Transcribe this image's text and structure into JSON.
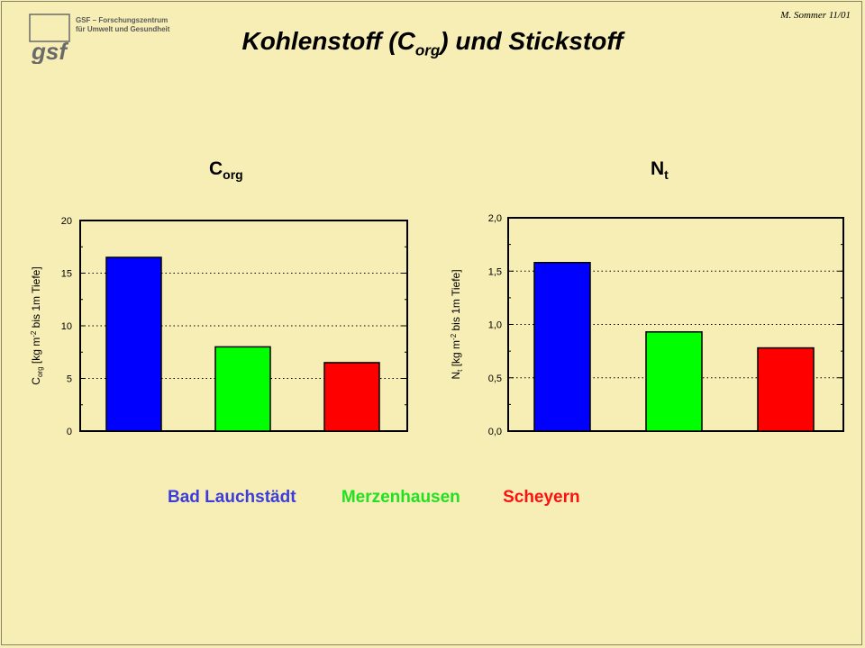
{
  "header": {
    "logo_lines": [
      "GSF – Forschungszentrum",
      "für Umwelt und Gesundheit"
    ],
    "logo_text": "gsf",
    "author": "M. Sommer 11/01",
    "title_main": "Kohlenstoff (C",
    "title_sub": "org",
    "title_rest": ") und Stickstoff"
  },
  "colors": {
    "background": "#f7eeb5",
    "bad_lauchstaedt": "#0000ff",
    "merzenhausen": "#00ff00",
    "scheyern": "#ff0000"
  },
  "legend": [
    {
      "label": "Bad Lauchstädt",
      "color": "#3c3cdc"
    },
    {
      "label": "Merzenhausen",
      "color": "#22e022"
    },
    {
      "label": "Scheyern",
      "color": "#ff1010"
    }
  ],
  "chart_data": [
    {
      "type": "bar",
      "title": "C",
      "title_sub": "org",
      "ylabel_parts": [
        "C",
        "org",
        " [kg m",
        "-2",
        " bis 1m Tiefe]"
      ],
      "categories": [
        "Bad Lauchstädt",
        "Merzenhausen",
        "Scheyern"
      ],
      "values": [
        16.5,
        8.0,
        6.5
      ],
      "colors": [
        "#0000ff",
        "#00ff00",
        "#ff0000"
      ],
      "ylim": [
        0,
        20
      ],
      "ticks": [
        0,
        5,
        10,
        15,
        20
      ],
      "tick_labels": [
        "0",
        "5",
        "10",
        "15",
        "20"
      ],
      "grid": "horizontal dotted"
    },
    {
      "type": "bar",
      "title": "N",
      "title_sub": "t",
      "ylabel_parts": [
        "N",
        "t",
        " [kg m",
        "-2",
        " bis 1m Tiefe]"
      ],
      "categories": [
        "Bad Lauchstädt",
        "Merzenhausen",
        "Scheyern"
      ],
      "values": [
        1.58,
        0.93,
        0.78
      ],
      "colors": [
        "#0000ff",
        "#00ff00",
        "#ff0000"
      ],
      "ylim": [
        0,
        2.0
      ],
      "ticks": [
        0,
        0.5,
        1.0,
        1.5,
        2.0
      ],
      "tick_labels": [
        "0,0",
        "0,5",
        "1,0",
        "1,5",
        "2,0"
      ],
      "grid": "horizontal dotted"
    }
  ]
}
